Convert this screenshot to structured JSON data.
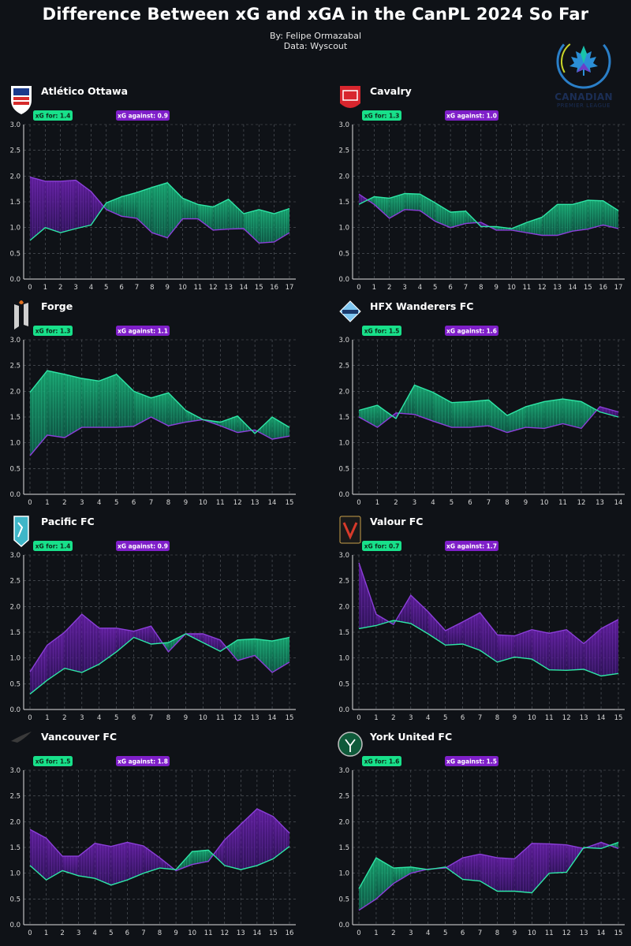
{
  "header": {
    "title": "Difference Between xG and xGA in the CanPL 2024 So Far",
    "byline": "By: Felipe Ormazabal",
    "source": "Data: Wyscout"
  },
  "league_logo": {
    "name": "CANADIAN",
    "sub": "PREMIER LEAGUE",
    "icon": "maple-leaf-icon"
  },
  "colors": {
    "background": "#0f1217",
    "xg_line": "#2ee6a6",
    "xga_line": "#8b3fd9",
    "xg_fill": "#18b57a",
    "xga_fill": "#6a1fae",
    "badge_xg": "#18e08a",
    "badge_xga": "#7f1fc9",
    "grid": "#5a5f66"
  },
  "chart_data": [
    {
      "type": "area",
      "team": "Atlético Ottawa",
      "badge_xg": "xG for: 1.4",
      "badge_xga": "xG against: 0.9",
      "ylim": [
        0,
        3.0
      ],
      "yticks": [
        "0.0",
        "0.5",
        "1.0",
        "1.5",
        "2.0",
        "2.5",
        "3.0"
      ],
      "x": [
        0,
        1,
        2,
        3,
        4,
        5,
        6,
        7,
        8,
        9,
        10,
        11,
        12,
        13,
        14,
        15,
        16,
        17
      ],
      "series": [
        {
          "key": "xg",
          "values": [
            0.75,
            1.0,
            0.9,
            0.98,
            1.05,
            1.48,
            1.6,
            1.68,
            1.78,
            1.87,
            1.57,
            1.45,
            1.4,
            1.55,
            1.27,
            1.35,
            1.27,
            1.37
          ]
        },
        {
          "key": "xga",
          "values": [
            1.98,
            1.9,
            1.9,
            1.92,
            1.7,
            1.35,
            1.22,
            1.18,
            0.9,
            0.8,
            1.17,
            1.17,
            0.95,
            0.97,
            0.98,
            0.7,
            0.72,
            0.9
          ]
        }
      ]
    },
    {
      "type": "area",
      "team": "Cavalry",
      "badge_xg": "xG for: 1.3",
      "badge_xga": "xG against: 1.0",
      "ylim": [
        0,
        3.0
      ],
      "yticks": [
        "0.0",
        "0.5",
        "1.0",
        "1.5",
        "2.0",
        "2.5",
        "3.0"
      ],
      "x": [
        0,
        1,
        2,
        3,
        4,
        5,
        6,
        7,
        8,
        9,
        10,
        11,
        12,
        13,
        14,
        15,
        16,
        17
      ],
      "series": [
        {
          "key": "xg",
          "values": [
            1.45,
            1.6,
            1.57,
            1.66,
            1.65,
            1.48,
            1.3,
            1.32,
            1.02,
            1.02,
            0.98,
            1.1,
            1.2,
            1.45,
            1.45,
            1.53,
            1.52,
            1.33
          ]
        },
        {
          "key": "xga",
          "values": [
            1.65,
            1.45,
            1.18,
            1.35,
            1.33,
            1.12,
            1.0,
            1.08,
            1.1,
            0.95,
            0.95,
            0.9,
            0.85,
            0.85,
            0.93,
            0.97,
            1.05,
            0.98
          ]
        }
      ]
    },
    {
      "type": "area",
      "team": "Forge",
      "badge_xg": "xG for: 1.3",
      "badge_xga": "xG against: 1.1",
      "ylim": [
        0,
        3.0
      ],
      "yticks": [
        "0.0",
        "0.5",
        "1.0",
        "1.5",
        "2.0",
        "2.5",
        "3.0"
      ],
      "x": [
        0,
        1,
        2,
        3,
        4,
        5,
        6,
        7,
        8,
        9,
        10,
        11,
        12,
        13,
        14,
        15
      ],
      "series": [
        {
          "key": "xg",
          "values": [
            1.98,
            2.4,
            2.33,
            2.25,
            2.2,
            2.33,
            2.0,
            1.87,
            1.97,
            1.63,
            1.45,
            1.4,
            1.52,
            1.18,
            1.5,
            1.3
          ]
        },
        {
          "key": "xga",
          "values": [
            0.75,
            1.15,
            1.1,
            1.3,
            1.3,
            1.3,
            1.32,
            1.5,
            1.33,
            1.4,
            1.45,
            1.33,
            1.2,
            1.25,
            1.07,
            1.13
          ]
        }
      ]
    },
    {
      "type": "area",
      "team": "HFX Wanderers FC",
      "badge_xg": "xG for: 1.5",
      "badge_xga": "xG against: 1.6",
      "ylim": [
        0,
        3.0
      ],
      "yticks": [
        "0.0",
        "0.5",
        "1.0",
        "1.5",
        "2.0",
        "2.5",
        "3.0"
      ],
      "x": [
        0,
        1,
        2,
        3,
        4,
        5,
        6,
        7,
        8,
        9,
        10,
        11,
        12,
        13,
        14
      ],
      "series": [
        {
          "key": "xg",
          "values": [
            1.63,
            1.73,
            1.47,
            2.12,
            1.98,
            1.78,
            1.8,
            1.83,
            1.53,
            1.7,
            1.8,
            1.85,
            1.8,
            1.6,
            1.5
          ]
        },
        {
          "key": "xga",
          "values": [
            1.5,
            1.3,
            1.58,
            1.55,
            1.42,
            1.3,
            1.3,
            1.33,
            1.2,
            1.3,
            1.28,
            1.37,
            1.28,
            1.7,
            1.6
          ]
        }
      ]
    },
    {
      "type": "area",
      "team": "Pacific FC",
      "badge_xg": "xG for: 1.4",
      "badge_xga": "xG against: 0.9",
      "ylim": [
        0,
        3.0
      ],
      "yticks": [
        "0.0",
        "0.5",
        "1.0",
        "1.5",
        "2.0",
        "2.5",
        "3.0"
      ],
      "x": [
        0,
        1,
        2,
        3,
        4,
        5,
        6,
        7,
        8,
        9,
        10,
        11,
        12,
        13,
        14,
        15
      ],
      "series": [
        {
          "key": "xg",
          "values": [
            0.3,
            0.57,
            0.8,
            0.72,
            0.88,
            1.12,
            1.4,
            1.27,
            1.3,
            1.47,
            1.3,
            1.13,
            1.35,
            1.37,
            1.33,
            1.4
          ]
        },
        {
          "key": "xga",
          "values": [
            0.73,
            1.25,
            1.5,
            1.85,
            1.58,
            1.58,
            1.52,
            1.62,
            1.12,
            1.47,
            1.47,
            1.35,
            0.95,
            1.05,
            0.72,
            0.92
          ]
        }
      ]
    },
    {
      "type": "area",
      "team": "Valour FC",
      "badge_xg": "xG for: 0.7",
      "badge_xga": "xG against: 1.7",
      "ylim": [
        0,
        3.0
      ],
      "yticks": [
        "0.0",
        "0.5",
        "1.0",
        "1.5",
        "2.0",
        "2.5",
        "3.0"
      ],
      "x": [
        0,
        1,
        2,
        3,
        4,
        5,
        6,
        7,
        8,
        9,
        10,
        11,
        12,
        13,
        14,
        15
      ],
      "series": [
        {
          "key": "xg",
          "values": [
            1.57,
            1.63,
            1.73,
            1.67,
            1.47,
            1.25,
            1.27,
            1.15,
            0.92,
            1.02,
            0.98,
            0.77,
            0.76,
            0.78,
            0.65,
            0.7
          ]
        },
        {
          "key": "xga",
          "values": [
            2.85,
            1.85,
            1.65,
            2.22,
            1.9,
            1.53,
            1.7,
            1.88,
            1.45,
            1.43,
            1.55,
            1.48,
            1.55,
            1.28,
            1.57,
            1.75
          ]
        }
      ]
    },
    {
      "type": "area",
      "team": "Vancouver FC",
      "badge_xg": "xG for: 1.5",
      "badge_xga": "xG against: 1.8",
      "ylim": [
        0,
        3.0
      ],
      "yticks": [
        "0.0",
        "0.5",
        "1.0",
        "1.5",
        "2.0",
        "2.5",
        "3.0"
      ],
      "x": [
        0,
        1,
        2,
        3,
        4,
        5,
        6,
        7,
        8,
        9,
        10,
        11,
        12,
        13,
        14,
        15,
        16
      ],
      "series": [
        {
          "key": "xg",
          "values": [
            1.15,
            0.87,
            1.05,
            0.95,
            0.9,
            0.77,
            0.87,
            1.0,
            1.1,
            1.07,
            1.42,
            1.45,
            1.15,
            1.07,
            1.15,
            1.28,
            1.52
          ]
        },
        {
          "key": "xga",
          "values": [
            1.85,
            1.68,
            1.33,
            1.33,
            1.58,
            1.52,
            1.6,
            1.53,
            1.3,
            1.05,
            1.17,
            1.23,
            1.65,
            1.95,
            2.25,
            2.1,
            1.78
          ]
        }
      ]
    },
    {
      "type": "area",
      "team": "York United FC",
      "badge_xg": "xG for: 1.6",
      "badge_xga": "xG against: 1.5",
      "ylim": [
        0,
        3.0
      ],
      "yticks": [
        "0.0",
        "0.5",
        "1.0",
        "1.5",
        "2.0",
        "2.5",
        "3.0"
      ],
      "x": [
        0,
        1,
        2,
        3,
        4,
        5,
        6,
        7,
        8,
        9,
        10,
        11,
        12,
        13,
        14,
        15
      ],
      "series": [
        {
          "key": "xg",
          "values": [
            0.7,
            1.3,
            1.1,
            1.12,
            1.07,
            1.12,
            0.88,
            0.85,
            0.65,
            0.65,
            0.62,
            1.0,
            1.02,
            1.5,
            1.48,
            1.6
          ]
        },
        {
          "key": "xga",
          "values": [
            0.28,
            0.5,
            0.8,
            1.0,
            1.08,
            1.1,
            1.3,
            1.37,
            1.3,
            1.28,
            1.58,
            1.57,
            1.55,
            1.48,
            1.6,
            1.48
          ]
        }
      ]
    }
  ]
}
